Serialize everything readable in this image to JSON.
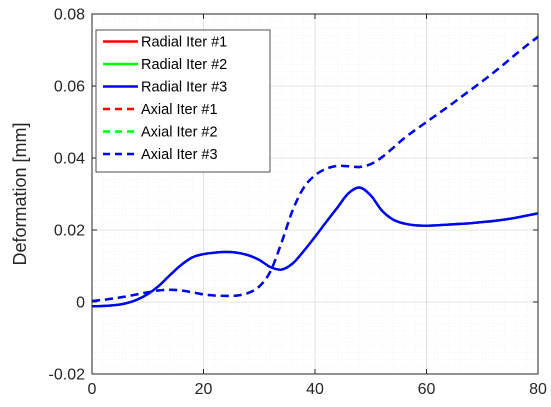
{
  "chart_data": {
    "type": "line",
    "title": "",
    "xlabel": "",
    "ylabel": "Deformation [mm]",
    "xlim": [
      0,
      80
    ],
    "ylim": [
      -0.02,
      0.08
    ],
    "x_ticks": [
      0,
      20,
      40,
      60,
      80
    ],
    "x_tick_labels": [
      "0",
      "20",
      "40",
      "60",
      "80"
    ],
    "y_ticks": [
      -0.02,
      0,
      0.02,
      0.04,
      0.06,
      0.08
    ],
    "y_tick_labels": [
      "-0.02",
      "0",
      "0.02",
      "0.04",
      "0.06",
      "0.08"
    ],
    "grid": true,
    "minor_grid": true,
    "legend_position": "top-left",
    "x": [
      0,
      2,
      4,
      6,
      8,
      10,
      12,
      14,
      16,
      18,
      20,
      22,
      24,
      26,
      28,
      30,
      32,
      34,
      36,
      38,
      40,
      42,
      44,
      46,
      48,
      50,
      52,
      54,
      56,
      58,
      60,
      62,
      64,
      66,
      68,
      70,
      72,
      74,
      76,
      78,
      80
    ],
    "series": [
      {
        "name": "Radial Iter #1",
        "color": "#ff0000",
        "style": "solid",
        "values": [
          -0.0012,
          -0.0011,
          -0.0009,
          -0.0004,
          0.0006,
          0.0022,
          0.0045,
          0.0075,
          0.0103,
          0.0124,
          0.0133,
          0.0137,
          0.0139,
          0.0137,
          0.013,
          0.0117,
          0.0097,
          0.009,
          0.0107,
          0.0142,
          0.0181,
          0.0222,
          0.0262,
          0.0302,
          0.0318,
          0.0296,
          0.0254,
          0.0229,
          0.0218,
          0.0213,
          0.0212,
          0.0213,
          0.0215,
          0.0217,
          0.0219,
          0.0222,
          0.0225,
          0.0229,
          0.0234,
          0.024,
          0.0247
        ]
      },
      {
        "name": "Radial Iter #2",
        "color": "#00ff00",
        "style": "solid",
        "values": [
          -0.0012,
          -0.0011,
          -0.0009,
          -0.0004,
          0.0006,
          0.0022,
          0.0045,
          0.0075,
          0.0103,
          0.0124,
          0.0133,
          0.0137,
          0.0139,
          0.0137,
          0.013,
          0.0117,
          0.0097,
          0.009,
          0.0107,
          0.0142,
          0.0181,
          0.0222,
          0.0262,
          0.0302,
          0.0318,
          0.0296,
          0.0254,
          0.0229,
          0.0218,
          0.0213,
          0.0212,
          0.0213,
          0.0215,
          0.0217,
          0.0219,
          0.0222,
          0.0225,
          0.0229,
          0.0234,
          0.024,
          0.0247
        ]
      },
      {
        "name": "Radial Iter #3",
        "color": "#0000ff",
        "style": "solid",
        "values": [
          -0.0012,
          -0.0011,
          -0.0009,
          -0.0004,
          0.0006,
          0.0022,
          0.0045,
          0.0075,
          0.0103,
          0.0124,
          0.0133,
          0.0137,
          0.0139,
          0.0137,
          0.013,
          0.0117,
          0.0097,
          0.009,
          0.0107,
          0.0142,
          0.0181,
          0.0222,
          0.0262,
          0.0302,
          0.0318,
          0.0296,
          0.0254,
          0.0229,
          0.0218,
          0.0213,
          0.0212,
          0.0213,
          0.0215,
          0.0217,
          0.0219,
          0.0222,
          0.0225,
          0.0229,
          0.0234,
          0.024,
          0.0246
        ]
      },
      {
        "name": "Axial Iter #1",
        "color": "#ff0000",
        "style": "dashed",
        "values": [
          0.0003,
          0.0006,
          0.001,
          0.0015,
          0.0021,
          0.0027,
          0.0032,
          0.0034,
          0.0032,
          0.0027,
          0.0021,
          0.0018,
          0.0017,
          0.0018,
          0.0025,
          0.0043,
          0.0085,
          0.0165,
          0.0255,
          0.0318,
          0.0352,
          0.037,
          0.0378,
          0.0377,
          0.0375,
          0.0383,
          0.0402,
          0.0428,
          0.0455,
          0.0478,
          0.05,
          0.0522,
          0.0544,
          0.0567,
          0.059,
          0.0613,
          0.0637,
          0.0662,
          0.0688,
          0.0713,
          0.0738
        ]
      },
      {
        "name": "Axial Iter #2",
        "color": "#00ff00",
        "style": "dashed",
        "values": [
          0.0003,
          0.0006,
          0.001,
          0.0015,
          0.0021,
          0.0027,
          0.0032,
          0.0034,
          0.0032,
          0.0027,
          0.0021,
          0.0018,
          0.0017,
          0.0018,
          0.0025,
          0.0043,
          0.0085,
          0.0165,
          0.0255,
          0.0318,
          0.0352,
          0.037,
          0.0378,
          0.0377,
          0.0375,
          0.0383,
          0.0402,
          0.0428,
          0.0455,
          0.0478,
          0.05,
          0.0522,
          0.0544,
          0.0567,
          0.059,
          0.0613,
          0.0637,
          0.0662,
          0.0688,
          0.0713,
          0.0738
        ]
      },
      {
        "name": "Axial Iter #3",
        "color": "#0000ff",
        "style": "dashed",
        "values": [
          0.0003,
          0.0006,
          0.001,
          0.0015,
          0.0021,
          0.0027,
          0.0032,
          0.0034,
          0.0032,
          0.0027,
          0.0021,
          0.0018,
          0.0017,
          0.0018,
          0.0025,
          0.0043,
          0.0085,
          0.0165,
          0.0255,
          0.0318,
          0.0352,
          0.037,
          0.0378,
          0.0377,
          0.0375,
          0.0383,
          0.0402,
          0.0428,
          0.0455,
          0.0478,
          0.05,
          0.0522,
          0.0544,
          0.0567,
          0.059,
          0.0613,
          0.0637,
          0.0662,
          0.0688,
          0.0713,
          0.0736
        ]
      }
    ]
  }
}
